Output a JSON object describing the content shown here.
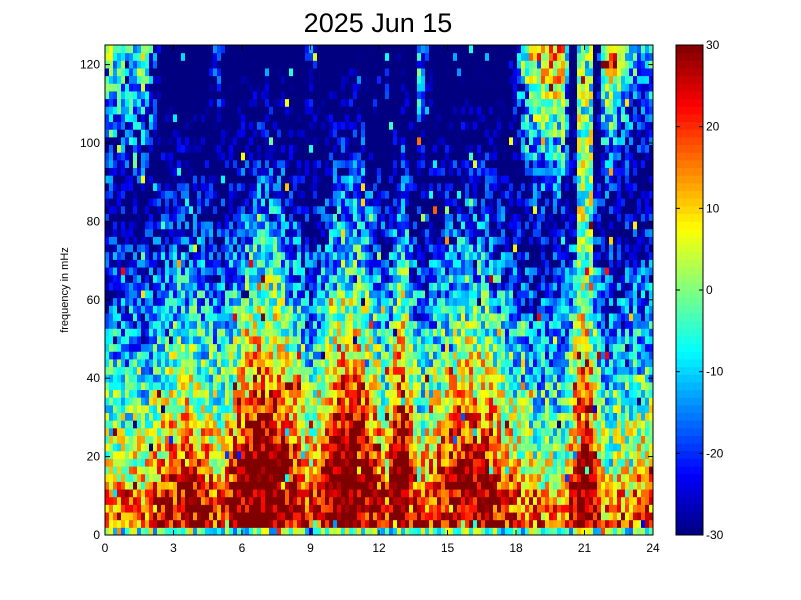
{
  "chart_data": {
    "type": "heatmap",
    "title": "2025 Jun 15",
    "xlabel": "",
    "ylabel": "frequency in mHz",
    "xlim": [
      0,
      24
    ],
    "ylim": [
      0,
      125
    ],
    "x_ticks": [
      "0",
      "3",
      "6",
      "9",
      "12",
      "15",
      "18",
      "21",
      "24"
    ],
    "y_ticks": [
      "0",
      "20",
      "40",
      "60",
      "80",
      "100",
      "120"
    ],
    "colorbar": {
      "range": [
        -30,
        30
      ],
      "ticks": [
        "-30",
        "-20",
        "-10",
        "0",
        "10",
        "20",
        "30"
      ],
      "colormap": "jet"
    },
    "grid": false,
    "activity_regions": [
      {
        "hours": [
          5.5,
          8.5
        ],
        "freq_mHz": [
          0,
          50
        ],
        "level": "high"
      },
      {
        "hours": [
          9.5,
          12
        ],
        "freq_mHz": [
          0,
          45
        ],
        "level": "high"
      },
      {
        "hours": [
          12.5,
          13.5
        ],
        "freq_mHz": [
          0,
          30
        ],
        "level": "high"
      },
      {
        "hours": [
          20.5,
          21.5
        ],
        "freq_mHz": [
          0,
          125
        ],
        "level": "high"
      }
    ]
  }
}
